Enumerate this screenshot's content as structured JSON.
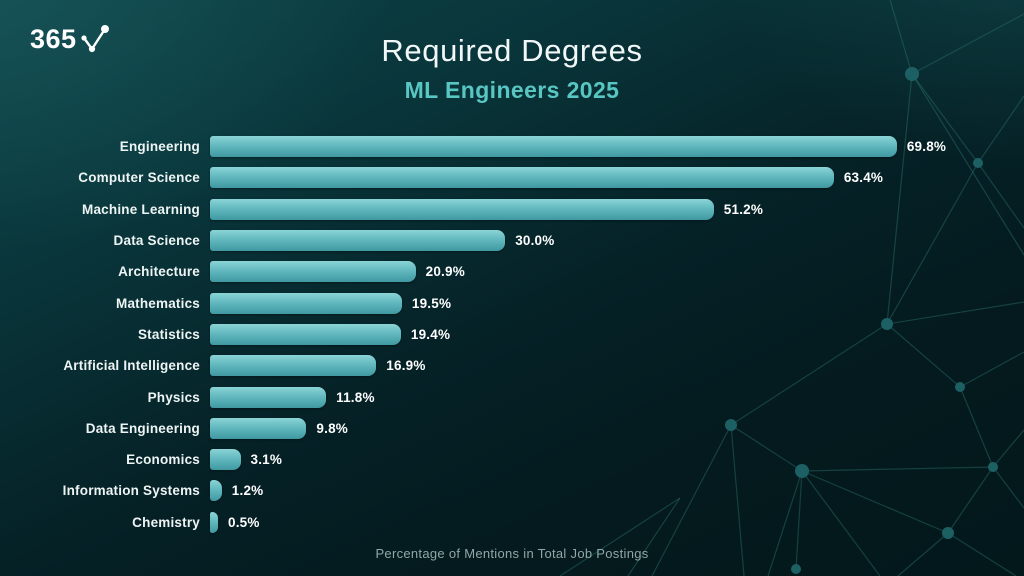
{
  "logo": {
    "text": "365"
  },
  "header": {
    "title": "Required Degrees",
    "subtitle": "ML Engineers 2025"
  },
  "chart_data": {
    "type": "bar",
    "orientation": "horizontal",
    "title": "Required Degrees",
    "subtitle": "ML Engineers 2025",
    "categories": [
      "Engineering",
      "Computer Science",
      "Machine Learning",
      "Data Science",
      "Architecture",
      "Mathematics",
      "Statistics",
      "Artificial Intelligence",
      "Physics",
      "Data Engineering",
      "Economics",
      "Information Systems",
      "Chemistry"
    ],
    "values": [
      69.8,
      63.4,
      51.2,
      30.0,
      20.9,
      19.5,
      19.4,
      16.9,
      11.8,
      9.8,
      3.1,
      1.2,
      0.5
    ],
    "value_labels": [
      "69.8%",
      "63.4%",
      "51.2%",
      "30.0%",
      "20.9%",
      "19.5%",
      "19.4%",
      "16.9%",
      "11.8%",
      "9.8%",
      "3.1%",
      "1.2%",
      "0.5%"
    ],
    "xlabel": "Percentage of Mentions in Total Job Postings",
    "ylabel": "",
    "xlim": [
      0,
      70
    ],
    "grid": false,
    "legend": false
  },
  "colors": {
    "background_light": "#0d4649",
    "background_dark": "#03181b",
    "bar_top": "#8ad4d6",
    "bar_bottom": "#3f98a1",
    "subtitle": "#58c6c3",
    "label_text": "#eef4f4",
    "caption_text": "#8fa8a5",
    "network_line": "#2f7672"
  }
}
